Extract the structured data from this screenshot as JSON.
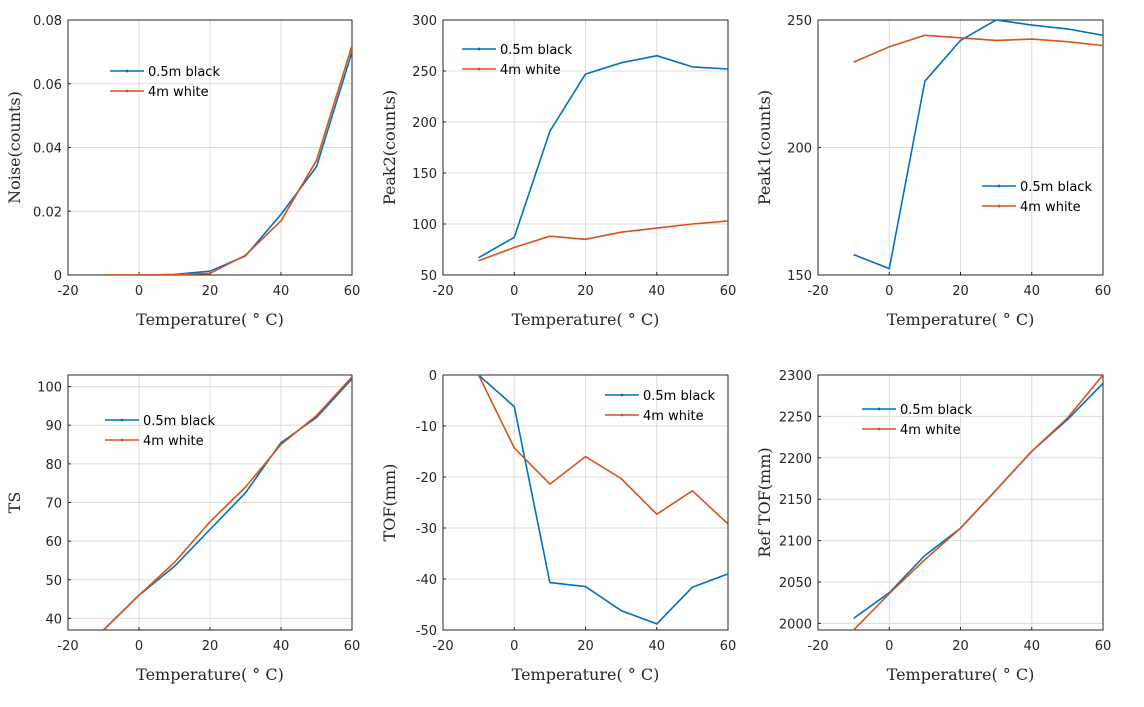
{
  "colors": {
    "blue": "#0072BD",
    "orange": "#D95319",
    "grid": "#dcdcdc",
    "axis": "#262626"
  },
  "chart_data": [
    {
      "type": "line",
      "xlabel": "Temperature( ° C)",
      "ylabel": "Noise(counts)",
      "xlim": [
        -20,
        60
      ],
      "ylim": [
        0,
        0.08
      ],
      "xticks": [
        -20,
        0,
        20,
        40,
        60
      ],
      "yticks": [
        0,
        0.02,
        0.04,
        0.06,
        0.08
      ],
      "ytick_labels": [
        "0",
        "0.02",
        "0.04",
        "0.06",
        "0.08"
      ],
      "grid": true,
      "legend": "upper-left",
      "series": [
        {
          "name": "0.5m black",
          "x": [
            -10,
            0,
            10,
            20,
            30,
            40,
            50,
            60
          ],
          "y": [
            0,
            0,
            0.0002,
            0.0012,
            0.006,
            0.019,
            0.034,
            0.07
          ]
        },
        {
          "name": "4m white",
          "x": [
            -10,
            0,
            10,
            20,
            30,
            40,
            50,
            60
          ],
          "y": [
            0,
            0,
            0.0001,
            0.0005,
            0.0062,
            0.017,
            0.036,
            0.072
          ]
        }
      ]
    },
    {
      "type": "line",
      "xlabel": "Temperature( ° C)",
      "ylabel": "Peak2(counts)",
      "xlim": [
        -20,
        60
      ],
      "ylim": [
        50,
        300
      ],
      "xticks": [
        -20,
        0,
        20,
        40,
        60
      ],
      "yticks": [
        50,
        100,
        150,
        200,
        250,
        300
      ],
      "ytick_labels": [
        "50",
        "100",
        "150",
        "200",
        "250",
        "300"
      ],
      "grid": true,
      "legend": "top-left",
      "series": [
        {
          "name": "0.5m black",
          "x": [
            -10,
            0,
            10,
            20,
            30,
            40,
            50,
            60
          ],
          "y": [
            67,
            87,
            191,
            247,
            258,
            265,
            254,
            252
          ]
        },
        {
          "name": "4m white",
          "x": [
            -10,
            0,
            10,
            20,
            30,
            40,
            50,
            60
          ],
          "y": [
            64,
            77,
            88,
            85,
            92,
            96,
            100,
            103
          ]
        }
      ]
    },
    {
      "type": "line",
      "xlabel": "Temperature( ° C)",
      "ylabel": "Peak1(counts)",
      "xlim": [
        -20,
        60
      ],
      "ylim": [
        150,
        250
      ],
      "xticks": [
        -20,
        0,
        20,
        40,
        60
      ],
      "yticks": [
        150,
        200,
        250
      ],
      "ytick_labels": [
        "150",
        "200",
        "250"
      ],
      "grid": true,
      "legend": "center-right",
      "series": [
        {
          "name": "0.5m black",
          "x": [
            -10,
            0,
            10,
            20,
            30,
            40,
            50,
            60
          ],
          "y": [
            158,
            152.5,
            226,
            242,
            250,
            248,
            246.5,
            244
          ]
        },
        {
          "name": "4m white",
          "x": [
            -10,
            0,
            10,
            20,
            30,
            40,
            50,
            60
          ],
          "y": [
            233.5,
            239.5,
            244,
            243,
            242,
            242.5,
            241.5,
            240
          ]
        }
      ]
    },
    {
      "type": "line",
      "xlabel": "Temperature( ° C)",
      "ylabel": "TS",
      "xlim": [
        -20,
        60
      ],
      "ylim": [
        37,
        103
      ],
      "xticks": [
        -20,
        0,
        20,
        40,
        60
      ],
      "yticks": [
        40,
        50,
        60,
        70,
        80,
        90,
        100
      ],
      "ytick_labels": [
        "40",
        "50",
        "60",
        "70",
        "80",
        "90",
        "100"
      ],
      "grid": true,
      "legend": "upper-left",
      "series": [
        {
          "name": "0.5m black",
          "x": [
            -10,
            0,
            10,
            20,
            30,
            40,
            50,
            60
          ],
          "y": [
            37,
            46,
            53.5,
            63,
            72.5,
            85.5,
            92,
            102
          ]
        },
        {
          "name": "4m white",
          "x": [
            -10,
            0,
            10,
            20,
            30,
            40,
            50,
            60
          ],
          "y": [
            37,
            46,
            54.5,
            65,
            74,
            85,
            92.5,
            102.5
          ]
        }
      ]
    },
    {
      "type": "line",
      "xlabel": "Temperature( ° C)",
      "ylabel": "TOF(mm)",
      "xlim": [
        -20,
        60
      ],
      "ylim": [
        -50,
        0
      ],
      "xticks": [
        -20,
        0,
        20,
        40,
        60
      ],
      "yticks": [
        -50,
        -40,
        -30,
        -20,
        -10,
        0
      ],
      "ytick_labels": [
        "-50",
        "-40",
        "-30",
        "-20",
        "-10",
        "0"
      ],
      "grid": true,
      "legend": "top-right",
      "series": [
        {
          "name": "0.5m black",
          "x": [
            -10,
            0,
            10,
            20,
            30,
            40,
            50,
            60
          ],
          "y": [
            0,
            -6.2,
            -40.7,
            -41.5,
            -46.2,
            -48.8,
            -41.6,
            -39
          ]
        },
        {
          "name": "4m white",
          "x": [
            -10,
            0,
            10,
            20,
            30,
            40,
            50,
            60
          ],
          "y": [
            0,
            -14.3,
            -21.4,
            -16,
            -20.3,
            -27.3,
            -22.7,
            -29.2
          ]
        }
      ]
    },
    {
      "type": "line",
      "xlabel": "Temperature( ° C)",
      "ylabel": "Ref TOF(mm)",
      "xlim": [
        -20,
        60
      ],
      "ylim": [
        1992,
        2300
      ],
      "xticks": [
        -20,
        0,
        20,
        40,
        60
      ],
      "yticks": [
        2000,
        2050,
        2100,
        2150,
        2200,
        2250,
        2300
      ],
      "ytick_labels": [
        "2000",
        "2050",
        "2100",
        "2150",
        "2200",
        "2250",
        "2300"
      ],
      "grid": true,
      "legend": "upper-left",
      "series": [
        {
          "name": "0.5m black",
          "x": [
            -10,
            0,
            10,
            20,
            30,
            40,
            50,
            60
          ],
          "y": [
            2006,
            2037,
            2082,
            2115,
            2161,
            2208,
            2246,
            2290
          ]
        },
        {
          "name": "4m white",
          "x": [
            -10,
            0,
            10,
            20,
            30,
            40,
            50,
            60
          ],
          "y": [
            1992,
            2036,
            2077,
            2115,
            2161,
            2208,
            2248,
            2300
          ]
        }
      ]
    }
  ]
}
